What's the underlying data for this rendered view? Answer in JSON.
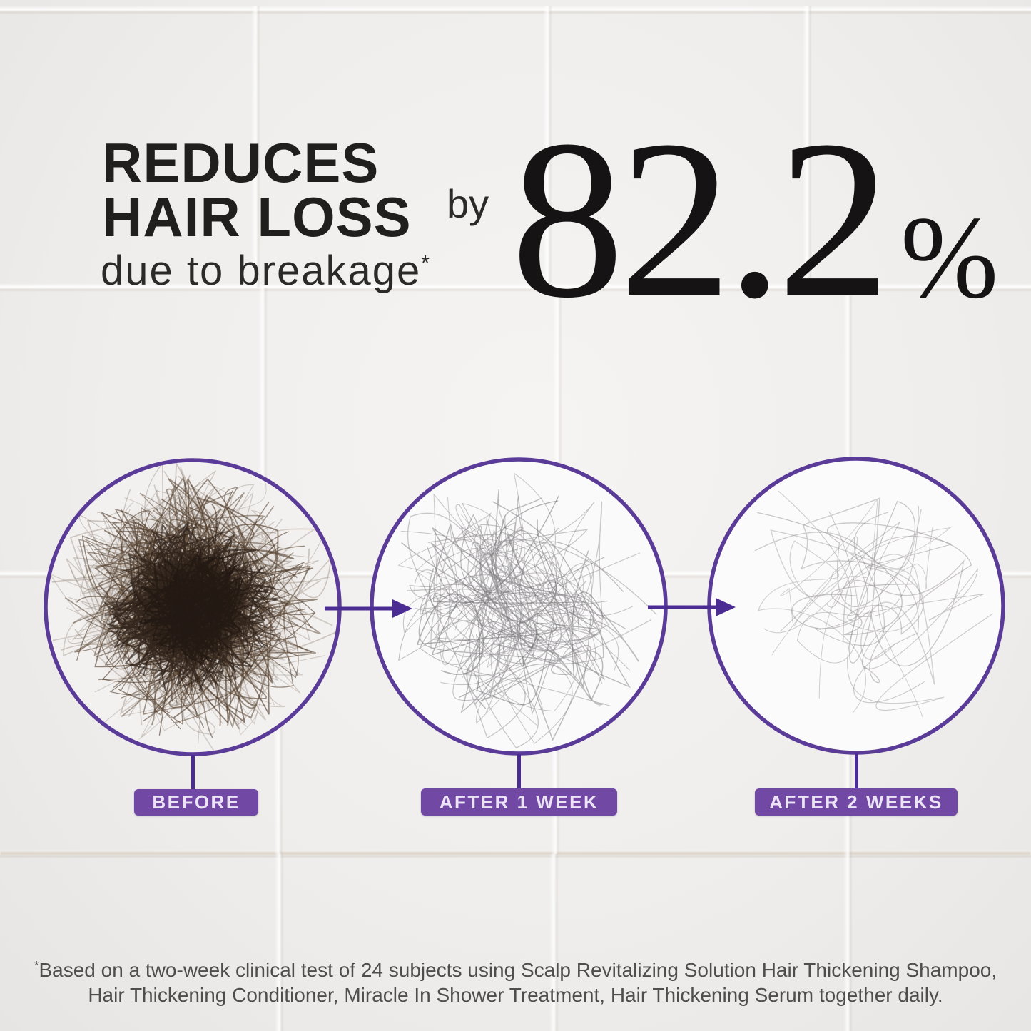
{
  "headline": {
    "line1": "REDUCES",
    "line2": "HAIR LOSS",
    "subline": "due to breakage",
    "footnote_marker": "*"
  },
  "stat": {
    "prefix": "by",
    "value": "82.2",
    "unit": "%"
  },
  "stages": [
    {
      "id": "before",
      "label": "BEFORE",
      "photo": {
        "description": "dense clump of dark brown shed hair on white tile",
        "bg": "#f3f1f0",
        "seed": 7,
        "shadow": true,
        "layers": [
          {
            "count": 60,
            "color": "#8d7e70",
            "spread": 1.0,
            "wmin": 1.0,
            "wmax": 1.8,
            "opacity": 0.4
          },
          {
            "count": 85,
            "color": "#55412f",
            "spread": 0.9,
            "wmin": 1.2,
            "wmax": 2.0,
            "opacity": 0.65
          },
          {
            "count": 110,
            "color": "#33261d",
            "spread": 0.6,
            "wmin": 1.4,
            "wmax": 2.4,
            "opacity": 0.8
          },
          {
            "count": 60,
            "color": "#241a14",
            "spread": 0.4,
            "wmin": 1.6,
            "wmax": 2.6,
            "opacity": 0.85
          }
        ]
      }
    },
    {
      "id": "after-1-week",
      "label": "AFTER 1 WEEK",
      "photo": {
        "description": "far fewer thin gray hair strands",
        "bg": "#fbfafa",
        "seed": 11,
        "shadow": false,
        "layers": [
          {
            "count": 30,
            "color": "#8f8d90",
            "spread": 0.97,
            "wmin": 0.9,
            "wmax": 1.6,
            "opacity": 0.6
          },
          {
            "count": 9,
            "color": "#6f6d70",
            "spread": 0.8,
            "wmin": 1.0,
            "wmax": 1.6,
            "opacity": 0.55
          }
        ]
      }
    },
    {
      "id": "after-2-weeks",
      "label": "AFTER 2 WEEKS",
      "photo": {
        "description": "only a few scattered light hair strands",
        "bg": "#fcfbfb",
        "seed": 23,
        "shadow": false,
        "layers": [
          {
            "count": 13,
            "color": "#9a989a",
            "spread": 0.95,
            "wmin": 0.9,
            "wmax": 1.5,
            "opacity": 0.55
          }
        ]
      }
    }
  ],
  "footnote": {
    "marker": "*",
    "line1": "Based on a two-week clinical test of 24 subjects using Scalp Revitalizing Solution Hair Thickening Shampoo,",
    "line2": "Hair Thickening Conditioner, Miracle In Shower Treatment, Hair Thickening Serum together daily."
  },
  "colors": {
    "accent_purple": "#5a3b98",
    "arrow_purple": "#4a2c92",
    "badge_purple": "#7149a5",
    "badge_text": "#ece4f6",
    "headline_text": "#211e1e",
    "subline_text": "#2c2929",
    "stat_text": "#151313",
    "footnote_text": "#504d4d"
  }
}
